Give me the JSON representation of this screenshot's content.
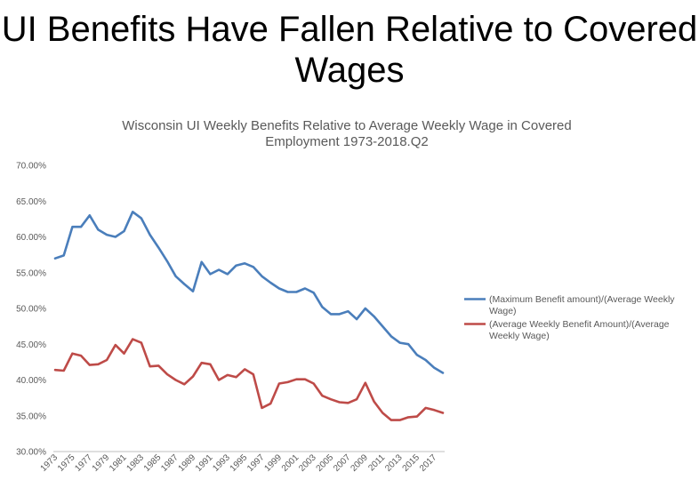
{
  "slide": {
    "title_line1": "UI Benefits Have Fallen Relative to Covered",
    "title_line2": "Wages"
  },
  "chart_data": {
    "type": "line",
    "title_line1": "Wisconsin UI Weekly Benefits Relative to Average Weekly Wage in Covered",
    "title_line2": "Employment 1973-2018.Q2",
    "xlabel": "",
    "ylabel": "",
    "ylim": [
      0.3,
      0.7
    ],
    "y_ticks": [
      "30.00%",
      "35.00%",
      "40.00%",
      "45.00%",
      "50.00%",
      "55.00%",
      "60.00%",
      "65.00%",
      "70.00%"
    ],
    "grid": false,
    "legend_position": "right",
    "x": [
      1973,
      1974,
      1975,
      1976,
      1977,
      1978,
      1979,
      1980,
      1981,
      1982,
      1983,
      1984,
      1985,
      1986,
      1987,
      1988,
      1989,
      1990,
      1991,
      1992,
      1993,
      1994,
      1995,
      1996,
      1997,
      1998,
      1999,
      2000,
      2001,
      2002,
      2003,
      2004,
      2005,
      2006,
      2007,
      2008,
      2009,
      2010,
      2011,
      2012,
      2013,
      2014,
      2015,
      2016,
      2017,
      2018
    ],
    "x_tick_labels": [
      "1973",
      "1975",
      "1977",
      "1979",
      "1981",
      "1983",
      "1985",
      "1987",
      "1989",
      "1991",
      "1993",
      "1995",
      "1997",
      "1999",
      "2001",
      "2003",
      "2005",
      "2007",
      "2009",
      "2011",
      "2013",
      "2015",
      "2017"
    ],
    "series": [
      {
        "name": "(Maximum Benefit amount)/(Average Weekly Wage)",
        "legend_line1": "(Maximum Benefit amount)/(Average Weekly",
        "legend_line2": "Wage)",
        "color": "#4a7ebb",
        "values": [
          0.57,
          0.574,
          0.614,
          0.614,
          0.63,
          0.61,
          0.603,
          0.6,
          0.608,
          0.635,
          0.626,
          0.603,
          0.585,
          0.566,
          0.545,
          0.534,
          0.524,
          0.565,
          0.548,
          0.554,
          0.548,
          0.56,
          0.563,
          0.558,
          0.545,
          0.536,
          0.528,
          0.523,
          0.523,
          0.528,
          0.522,
          0.502,
          0.492,
          0.492,
          0.496,
          0.485,
          0.5,
          0.489,
          0.475,
          0.461,
          0.452,
          0.45,
          0.435,
          0.428,
          0.417,
          0.41
        ]
      },
      {
        "name": "(Average Weekly Benefit Amount)/(Average Weekly Wage)",
        "legend_line1": "(Average Weekly Benefit Amount)/(Average",
        "legend_line2": "Weekly Wage)",
        "color": "#be4b48",
        "values": [
          0.414,
          0.413,
          0.437,
          0.434,
          0.421,
          0.422,
          0.428,
          0.449,
          0.437,
          0.457,
          0.452,
          0.419,
          0.42,
          0.408,
          0.4,
          0.394,
          0.405,
          0.424,
          0.422,
          0.4,
          0.407,
          0.404,
          0.415,
          0.408,
          0.361,
          0.367,
          0.395,
          0.397,
          0.401,
          0.401,
          0.395,
          0.378,
          0.373,
          0.369,
          0.368,
          0.373,
          0.396,
          0.37,
          0.354,
          0.344,
          0.344,
          0.348,
          0.349,
          0.361,
          0.358,
          0.354
        ]
      }
    ]
  }
}
